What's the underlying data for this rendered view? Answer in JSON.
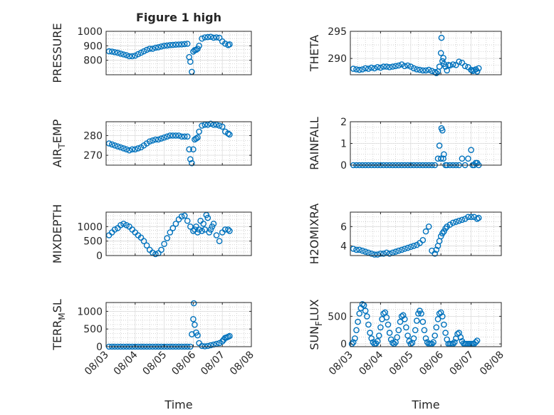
{
  "figure": {
    "title": "Figure 1 high",
    "marker_color": "#0072BD",
    "grid": "on (major + minor dotted)"
  },
  "chart_data": [
    {
      "type": "scatter",
      "ylabel": "PRESSURE",
      "ylabel_base": "PRESSURE",
      "ylabel_sub": "",
      "ylabel_tail": "",
      "xlabel": "",
      "x_ticks": [
        "08/03",
        "08/04",
        "08/05",
        "08/06",
        "08/07",
        "08/08"
      ],
      "show_x_ticklabels": false,
      "xlim": [
        3,
        8
      ],
      "ylim": [
        700,
        1000
      ],
      "y_ticks": [
        800,
        900,
        1000
      ],
      "series": [
        {
          "x": [
            3.1,
            3.2,
            3.3,
            3.4,
            3.5,
            3.6,
            3.7,
            3.8,
            3.9,
            4.0,
            4.1,
            4.2,
            4.3,
            4.4,
            4.5,
            4.6,
            4.7,
            4.8,
            4.9,
            5.0,
            5.1,
            5.2,
            5.3,
            5.4,
            5.5,
            5.6,
            5.7,
            5.8,
            5.86,
            5.9,
            5.95,
            6.0,
            6.05,
            6.1,
            6.15,
            6.2,
            6.3,
            6.4,
            6.5,
            6.6,
            6.7,
            6.8,
            6.9,
            7.0,
            7.1,
            7.2,
            7.25
          ],
          "y": [
            862,
            860,
            856,
            852,
            846,
            840,
            835,
            828,
            828,
            832,
            842,
            852,
            862,
            872,
            880,
            880,
            887,
            890,
            895,
            900,
            902,
            905,
            906,
            908,
            909,
            910,
            912,
            914,
            822,
            790,
            720,
            860,
            870,
            872,
            880,
            900,
            950,
            958,
            960,
            962,
            956,
            958,
            955,
            930,
            915,
            905,
            910
          ]
        }
      ]
    },
    {
      "type": "scatter",
      "ylabel": "THETA",
      "ylabel_base": "THETA",
      "ylabel_sub": "",
      "ylabel_tail": "",
      "xlabel": "",
      "x_ticks": [
        "08/03",
        "08/04",
        "08/05",
        "08/06",
        "08/07",
        "08/08"
      ],
      "show_x_ticklabels": false,
      "xlim": [
        3,
        8
      ],
      "ylim": [
        287,
        295
      ],
      "y_ticks": [
        290,
        295
      ],
      "series": [
        {
          "x": [
            3.1,
            3.2,
            3.3,
            3.4,
            3.5,
            3.6,
            3.7,
            3.8,
            3.9,
            4.0,
            4.1,
            4.2,
            4.3,
            4.4,
            4.5,
            4.6,
            4.7,
            4.8,
            4.9,
            5.0,
            5.1,
            5.2,
            5.3,
            5.4,
            5.5,
            5.6,
            5.7,
            5.8,
            5.85,
            5.9,
            5.95,
            6.0,
            6.02,
            6.05,
            6.08,
            6.1,
            6.15,
            6.2,
            6.25,
            6.3,
            6.4,
            6.5,
            6.6,
            6.7,
            6.8,
            6.9,
            7.0,
            7.05,
            7.1,
            7.15,
            7.2,
            7.25
          ],
          "y": [
            288.1,
            288.0,
            287.9,
            288.0,
            288.2,
            288.1,
            288.3,
            288.2,
            288.4,
            288.3,
            288.5,
            288.5,
            288.4,
            288.5,
            288.6,
            288.7,
            288.9,
            288.6,
            288.7,
            288.5,
            288.2,
            288.0,
            287.9,
            287.8,
            287.8,
            287.9,
            287.7,
            287.5,
            287.3,
            287.6,
            288.5,
            291.0,
            293.8,
            289.5,
            290.1,
            289.0,
            288.5,
            287.8,
            288.8,
            288.7,
            288.9,
            288.8,
            289.4,
            289.2,
            288.6,
            288.4,
            287.9,
            287.7,
            287.8,
            288.0,
            287.6,
            288.2
          ]
        }
      ]
    },
    {
      "type": "scatter",
      "ylabel": "AIR_TEMP",
      "ylabel_base": "AIR",
      "ylabel_sub": "T",
      "ylabel_tail": "EMP",
      "xlabel": "",
      "x_ticks": [
        "08/03",
        "08/04",
        "08/05",
        "08/06",
        "08/07",
        "08/08"
      ],
      "show_x_ticklabels": false,
      "xlim": [
        3,
        8
      ],
      "ylim": [
        265,
        287
      ],
      "y_ticks": [
        270,
        280
      ],
      "series": [
        {
          "x": [
            3.1,
            3.2,
            3.3,
            3.4,
            3.5,
            3.6,
            3.7,
            3.8,
            3.9,
            4.0,
            4.1,
            4.2,
            4.3,
            4.4,
            4.5,
            4.6,
            4.7,
            4.8,
            4.9,
            5.0,
            5.1,
            5.2,
            5.3,
            5.4,
            5.5,
            5.6,
            5.7,
            5.8,
            5.86,
            5.9,
            5.95,
            6.0,
            6.05,
            6.1,
            6.15,
            6.2,
            6.3,
            6.4,
            6.5,
            6.6,
            6.7,
            6.8,
            6.9,
            7.0,
            7.1,
            7.2,
            7.25
          ],
          "y": [
            276,
            275.5,
            275,
            274.5,
            274,
            273.5,
            273,
            272.5,
            273,
            273,
            273.5,
            274,
            275,
            276,
            277,
            277.5,
            278,
            278,
            278.5,
            279,
            279.5,
            280,
            280,
            280,
            280,
            279.5,
            279.5,
            279.5,
            273,
            268,
            266,
            273,
            278,
            278.5,
            279,
            282,
            285,
            285.5,
            285.5,
            286,
            285.5,
            285.5,
            285,
            284.5,
            282,
            281,
            280.5
          ]
        }
      ]
    },
    {
      "type": "scatter",
      "ylabel": "RAINFALL",
      "ylabel_base": "RAINFALL",
      "ylabel_sub": "",
      "ylabel_tail": "",
      "xlabel": "",
      "x_ticks": [
        "08/03",
        "08/04",
        "08/05",
        "08/06",
        "08/07",
        "08/08"
      ],
      "show_x_ticklabels": false,
      "xlim": [
        3,
        8
      ],
      "ylim": [
        0,
        2
      ],
      "y_ticks": [
        0,
        1,
        2
      ],
      "series": [
        {
          "x": [
            3.1,
            3.2,
            3.3,
            3.4,
            3.5,
            3.6,
            3.7,
            3.8,
            3.9,
            4.0,
            4.1,
            4.2,
            4.3,
            4.4,
            4.5,
            4.6,
            4.7,
            4.8,
            4.9,
            5.0,
            5.1,
            5.2,
            5.3,
            5.4,
            5.5,
            5.6,
            5.7,
            5.8,
            5.9,
            5.95,
            6.0,
            6.02,
            6.05,
            6.08,
            6.1,
            6.15,
            6.2,
            6.3,
            6.4,
            6.5,
            6.6,
            6.7,
            6.8,
            6.9,
            7.0,
            7.05,
            7.1,
            7.15,
            7.2,
            7.25
          ],
          "y": [
            0,
            0,
            0,
            0,
            0,
            0,
            0,
            0,
            0,
            0,
            0,
            0,
            0,
            0,
            0,
            0,
            0,
            0,
            0,
            0,
            0,
            0,
            0,
            0,
            0,
            0,
            0,
            0,
            0.3,
            0.9,
            0.3,
            1.7,
            1.6,
            0.3,
            0.5,
            0,
            0,
            0,
            0,
            0,
            0,
            0.3,
            0,
            0.3,
            0.7,
            0,
            0,
            0.1,
            0.1,
            0
          ]
        }
      ]
    },
    {
      "type": "scatter",
      "ylabel": "MIXDEPTH",
      "ylabel_base": "MIXDEPTH",
      "ylabel_sub": "",
      "ylabel_tail": "",
      "xlabel": "",
      "x_ticks": [
        "08/03",
        "08/04",
        "08/05",
        "08/06",
        "08/07",
        "08/08"
      ],
      "show_x_ticklabels": false,
      "xlim": [
        3,
        8
      ],
      "ylim": [
        0,
        1500
      ],
      "y_ticks": [
        0,
        500,
        1000
      ],
      "series": [
        {
          "x": [
            3.1,
            3.2,
            3.3,
            3.4,
            3.5,
            3.6,
            3.7,
            3.8,
            3.9,
            4.0,
            4.1,
            4.2,
            4.3,
            4.4,
            4.5,
            4.6,
            4.7,
            4.8,
            4.9,
            5.0,
            5.1,
            5.2,
            5.3,
            5.4,
            5.5,
            5.6,
            5.7,
            5.8,
            5.9,
            6.0,
            6.05,
            6.1,
            6.15,
            6.2,
            6.25,
            6.3,
            6.35,
            6.4,
            6.45,
            6.5,
            6.55,
            6.6,
            6.65,
            6.7,
            6.8,
            6.9,
            7.0,
            7.1,
            7.2,
            7.25
          ],
          "y": [
            700,
            800,
            900,
            950,
            1050,
            1100,
            1050,
            1000,
            900,
            800,
            700,
            620,
            500,
            350,
            200,
            100,
            50,
            80,
            200,
            400,
            600,
            800,
            950,
            1100,
            1250,
            1350,
            1380,
            1200,
            1000,
            850,
            900,
            1000,
            800,
            900,
            1200,
            850,
            1100,
            900,
            1400,
            1300,
            800,
            900,
            1000,
            1100,
            700,
            500,
            800,
            900,
            900,
            850
          ]
        }
      ]
    },
    {
      "type": "scatter",
      "ylabel": "H2OMIXRA",
      "ylabel_base": "H2OMIXRA",
      "ylabel_sub": "",
      "ylabel_tail": "",
      "xlabel": "",
      "x_ticks": [
        "08/03",
        "08/04",
        "08/05",
        "08/06",
        "08/07",
        "08/08"
      ],
      "show_x_ticklabels": false,
      "xlim": [
        3,
        8
      ],
      "ylim": [
        3,
        7.5
      ],
      "y_ticks": [
        4,
        6
      ],
      "series": [
        {
          "x": [
            3.1,
            3.2,
            3.3,
            3.4,
            3.5,
            3.6,
            3.7,
            3.8,
            3.9,
            4.0,
            4.1,
            4.2,
            4.3,
            4.4,
            4.5,
            4.6,
            4.7,
            4.8,
            4.9,
            5.0,
            5.1,
            5.2,
            5.3,
            5.4,
            5.5,
            5.6,
            5.7,
            5.8,
            5.85,
            5.9,
            5.95,
            6.0,
            6.05,
            6.1,
            6.15,
            6.2,
            6.3,
            6.4,
            6.5,
            6.6,
            6.7,
            6.8,
            6.9,
            7.0,
            7.1,
            7.2,
            7.25
          ],
          "y": [
            3.7,
            3.6,
            3.6,
            3.5,
            3.4,
            3.3,
            3.2,
            3.1,
            3.1,
            3.2,
            3.2,
            3.3,
            3.2,
            3.3,
            3.4,
            3.5,
            3.6,
            3.7,
            3.8,
            3.9,
            4.0,
            4.1,
            4.3,
            4.6,
            5.5,
            6.0,
            3.5,
            3.2,
            3.6,
            4.0,
            4.5,
            5.0,
            5.3,
            5.5,
            5.8,
            6.0,
            6.2,
            6.4,
            6.5,
            6.6,
            6.7,
            6.8,
            7.0,
            7.0,
            7.0,
            6.8,
            6.9
          ]
        }
      ]
    },
    {
      "type": "scatter",
      "ylabel": "TERR_MSL",
      "ylabel_base": "TERR",
      "ylabel_sub": "M",
      "ylabel_tail": "SL",
      "xlabel": "Time",
      "x_ticks": [
        "08/03",
        "08/04",
        "08/05",
        "08/06",
        "08/07",
        "08/08"
      ],
      "show_x_ticklabels": true,
      "xlim": [
        3,
        8
      ],
      "ylim": [
        0,
        1250
      ],
      "y_ticks": [
        0,
        500,
        1000
      ],
      "series": [
        {
          "x": [
            3.1,
            3.2,
            3.3,
            3.4,
            3.5,
            3.6,
            3.7,
            3.8,
            3.9,
            4.0,
            4.1,
            4.2,
            4.3,
            4.4,
            4.5,
            4.6,
            4.7,
            4.8,
            4.9,
            5.0,
            5.1,
            5.2,
            5.3,
            5.4,
            5.5,
            5.6,
            5.7,
            5.8,
            5.9,
            5.95,
            6.0,
            6.02,
            6.05,
            6.1,
            6.15,
            6.2,
            6.3,
            6.4,
            6.5,
            6.6,
            6.7,
            6.8,
            6.9,
            7.0,
            7.05,
            7.1,
            7.15,
            7.2,
            7.25
          ],
          "y": [
            0,
            0,
            0,
            0,
            0,
            0,
            0,
            0,
            0,
            0,
            0,
            0,
            0,
            0,
            0,
            0,
            0,
            0,
            0,
            0,
            0,
            0,
            0,
            0,
            0,
            0,
            0,
            0,
            0,
            350,
            780,
            1230,
            620,
            400,
            320,
            100,
            20,
            10,
            20,
            40,
            60,
            80,
            100,
            150,
            200,
            250,
            260,
            280,
            300
          ]
        }
      ]
    },
    {
      "type": "scatter",
      "ylabel": "SUN_FLUX",
      "ylabel_base": "SUN",
      "ylabel_sub": "F",
      "ylabel_tail": "LUX",
      "xlabel": "Time",
      "x_ticks": [
        "08/03",
        "08/04",
        "08/05",
        "08/06",
        "08/07",
        "08/08"
      ],
      "show_x_ticklabels": true,
      "xlim": [
        3,
        8
      ],
      "ylim": [
        -50,
        750
      ],
      "y_ticks": [
        0,
        500
      ],
      "series": [
        {
          "x": [
            3.05,
            3.1,
            3.15,
            3.2,
            3.25,
            3.3,
            3.35,
            3.4,
            3.45,
            3.5,
            3.55,
            3.6,
            3.65,
            3.7,
            3.75,
            3.8,
            3.85,
            3.9,
            3.95,
            4.0,
            4.05,
            4.1,
            4.15,
            4.2,
            4.25,
            4.3,
            4.35,
            4.4,
            4.45,
            4.5,
            4.55,
            4.6,
            4.65,
            4.7,
            4.75,
            4.8,
            4.85,
            4.9,
            4.95,
            5.0,
            5.05,
            5.1,
            5.15,
            5.2,
            5.25,
            5.3,
            5.35,
            5.4,
            5.45,
            5.5,
            5.55,
            5.6,
            5.65,
            5.7,
            5.75,
            5.8,
            5.85,
            5.9,
            5.95,
            6.0,
            6.05,
            6.1,
            6.15,
            6.2,
            6.25,
            6.3,
            6.35,
            6.4,
            6.45,
            6.5,
            6.55,
            6.6,
            6.65,
            6.7,
            6.75,
            6.8,
            6.85,
            6.9,
            6.95,
            7.0,
            7.05,
            7.1,
            7.15,
            7.2
          ],
          "y": [
            0,
            30,
            100,
            250,
            400,
            550,
            650,
            720,
            700,
            600,
            500,
            350,
            200,
            100,
            30,
            0,
            10,
            50,
            150,
            300,
            450,
            550,
            570,
            480,
            350,
            200,
            80,
            20,
            0,
            30,
            120,
            250,
            400,
            500,
            520,
            450,
            300,
            150,
            50,
            0,
            20,
            100,
            250,
            420,
            550,
            600,
            550,
            400,
            250,
            100,
            30,
            0,
            0,
            0,
            30,
            150,
            300,
            450,
            550,
            570,
            500,
            350,
            200,
            80,
            0,
            0,
            0,
            0,
            30,
            100,
            180,
            200,
            120,
            50,
            10,
            0,
            0,
            0,
            0,
            0,
            0,
            0,
            30,
            60
          ]
        }
      ]
    }
  ]
}
